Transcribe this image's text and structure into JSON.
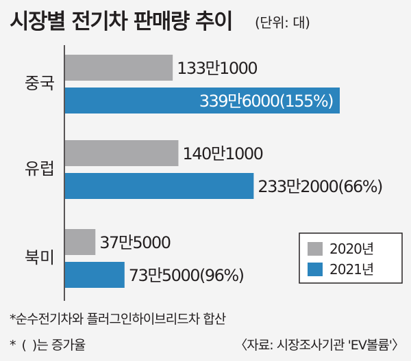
{
  "title": "시장별 전기차 판매량 추이",
  "unit_note": "(단위: 대)",
  "chart_data": {
    "type": "bar",
    "orientation": "horizontal",
    "categories": [
      "중국",
      "유럽",
      "북미"
    ],
    "series": [
      {
        "name": "2020년",
        "color": "#a9a9ab",
        "values": [
          1331000,
          1401000,
          375000
        ],
        "labels": [
          "133만1000",
          "140만1000",
          "37만5000"
        ]
      },
      {
        "name": "2021년",
        "color": "#2b84bd",
        "values": [
          3396000,
          2332000,
          735000
        ],
        "labels": [
          "339만6000(155%)",
          "233만2000(66%)",
          "73만5000(96%)"
        ]
      }
    ],
    "legend_position": "bottom-right",
    "grid": false
  },
  "notes": {
    "basis": "*순수전기차와 플러그인하이브리드차 합산",
    "growth_prefix": "*(",
    "growth_suffix": ")는 증가율",
    "source": "〈자료: 시장조사기관 'EV볼륨'〉"
  }
}
